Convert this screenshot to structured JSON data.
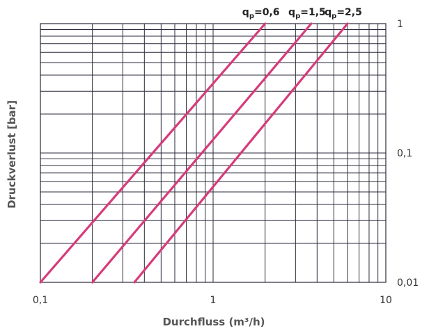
{
  "chart_data": {
    "type": "line",
    "title": "",
    "xlabel": "Durchfluss (m³/h)",
    "ylabel": "Druckverlust [bar]",
    "x_scale": "log",
    "y_scale": "log",
    "xlim": [
      0.1,
      10
    ],
    "ylim": [
      0.01,
      1
    ],
    "x_ticks": [
      {
        "value": 0.1,
        "label": "0,1"
      },
      {
        "value": 1,
        "label": "1"
      },
      {
        "value": 10,
        "label": "10"
      }
    ],
    "y_ticks": [
      {
        "value": 1,
        "label": "1"
      },
      {
        "value": 0.1,
        "label": "0,1"
      },
      {
        "value": 0.01,
        "label": "0,01"
      }
    ],
    "grid": true,
    "legend": "labels at line ends, top",
    "series_color": "#d63b7a",
    "series": [
      {
        "name": "qp=0,6",
        "label_main": "q",
        "label_sub": "p",
        "label_rest": "=0,6",
        "x": [
          0.1,
          2.0
        ],
        "y": [
          0.01,
          1
        ]
      },
      {
        "name": "qp=1,5",
        "label_main": "q",
        "label_sub": "p",
        "label_rest": "=1,5",
        "x": [
          0.2,
          3.7
        ],
        "y": [
          0.01,
          1
        ]
      },
      {
        "name": "qp=2,5",
        "label_main": "q",
        "label_sub": "p",
        "label_rest": "=2,5",
        "x": [
          0.35,
          6.0
        ],
        "y": [
          0.01,
          1
        ]
      }
    ]
  }
}
